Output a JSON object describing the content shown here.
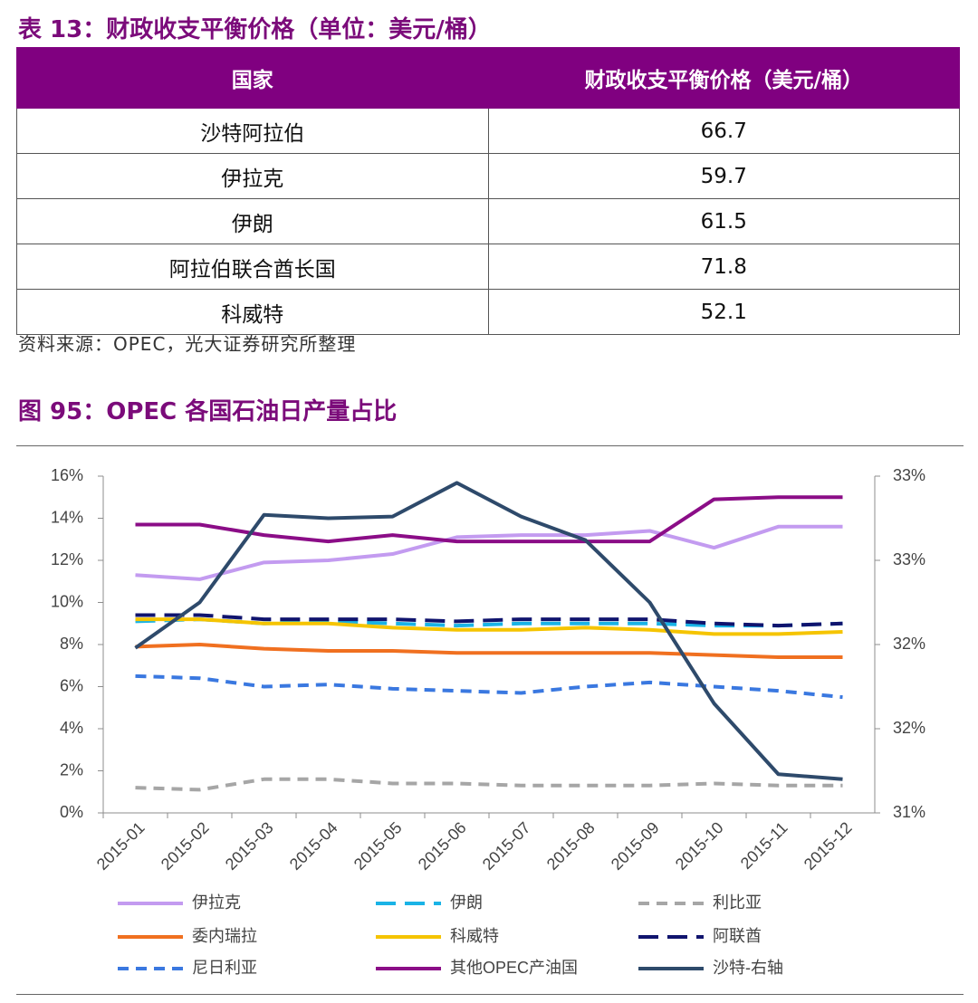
{
  "table_title": "表 13：财政收支平衡价格（单位：美元/桶）",
  "table": {
    "headers": [
      "国家",
      "财政收支平衡价格（美元/桶）"
    ],
    "rows": [
      [
        "沙特阿拉伯",
        66.7
      ],
      [
        "伊拉克",
        59.7
      ],
      [
        "伊朗",
        61.5
      ],
      [
        "阿拉伯联合酋长国",
        71.8
      ],
      [
        "科威特",
        52.1
      ]
    ]
  },
  "table_source": "资料来源：OPEC，光大证券研究所整理",
  "chart_title": "图 95：OPEC 各国石油日产量占比",
  "chart_data": {
    "type": "line",
    "categories": [
      "2015-01",
      "2015-02",
      "2015-03",
      "2015-04",
      "2015-05",
      "2015-06",
      "2015-07",
      "2015-08",
      "2015-09",
      "2015-10",
      "2015-11",
      "2015-12"
    ],
    "ylim": [
      0,
      16
    ],
    "yticks": [
      {
        "value": 0,
        "label": "0%"
      },
      {
        "value": 2,
        "label": "2%"
      },
      {
        "value": 4,
        "label": "4%"
      },
      {
        "value": 6,
        "label": "6%"
      },
      {
        "value": 8,
        "label": "8%"
      },
      {
        "value": 10,
        "label": "10%"
      },
      {
        "value": 12,
        "label": "12%"
      },
      {
        "value": 14,
        "label": "14%"
      },
      {
        "value": 16,
        "label": "16%"
      }
    ],
    "y2lim": [
      31,
      33
    ],
    "y2ticks": [
      {
        "value": 31,
        "label": "31%"
      },
      {
        "value": 31.5,
        "label": "32%"
      },
      {
        "value": 32,
        "label": "32%"
      },
      {
        "value": 32.5,
        "label": "33%"
      },
      {
        "value": 33,
        "label": "33%"
      }
    ],
    "series": [
      {
        "name": "伊拉克",
        "color": "#c39bf0",
        "style": "solid",
        "values": [
          11.3,
          11.1,
          11.9,
          12.0,
          12.3,
          13.1,
          13.2,
          13.2,
          13.4,
          12.6,
          13.6,
          13.6
        ]
      },
      {
        "name": "伊朗",
        "color": "#1ab3e6",
        "style": "long-dash",
        "values": [
          9.1,
          9.2,
          9.0,
          9.1,
          9.0,
          8.9,
          9.0,
          9.0,
          9.0,
          8.9,
          8.9,
          9.0
        ]
      },
      {
        "name": "利比亚",
        "color": "#a6a6a6",
        "style": "dash",
        "values": [
          1.2,
          1.1,
          1.6,
          1.6,
          1.4,
          1.4,
          1.3,
          1.3,
          1.3,
          1.4,
          1.3,
          1.3
        ]
      },
      {
        "name": "委内瑞拉",
        "color": "#f07020",
        "style": "solid",
        "values": [
          7.9,
          8.0,
          7.8,
          7.7,
          7.7,
          7.6,
          7.6,
          7.6,
          7.6,
          7.5,
          7.4,
          7.4
        ]
      },
      {
        "name": "科威特",
        "color": "#f5c400",
        "style": "solid",
        "values": [
          9.2,
          9.2,
          9.0,
          9.0,
          8.8,
          8.7,
          8.7,
          8.8,
          8.7,
          8.5,
          8.5,
          8.6
        ]
      },
      {
        "name": "阿联酋",
        "color": "#10146e",
        "style": "long-dash",
        "values": [
          9.4,
          9.4,
          9.2,
          9.2,
          9.2,
          9.1,
          9.2,
          9.2,
          9.2,
          9.0,
          8.9,
          9.0
        ]
      },
      {
        "name": "尼日利亚",
        "color": "#3a78e0",
        "style": "dash",
        "values": [
          6.5,
          6.4,
          6.0,
          6.1,
          5.9,
          5.8,
          5.7,
          6.0,
          6.2,
          6.0,
          5.8,
          5.5
        ]
      },
      {
        "name": "其他OPEC产油国",
        "color": "#8b0d87",
        "style": "solid",
        "values": [
          13.7,
          13.7,
          13.2,
          12.9,
          13.2,
          12.9,
          12.9,
          12.9,
          12.9,
          14.9,
          15.0,
          15.0
        ]
      },
      {
        "name": "沙特-右轴",
        "color": "#2e4a6b",
        "style": "solid",
        "axis": "y2",
        "values": [
          31.98,
          32.25,
          32.77,
          32.75,
          32.76,
          32.96,
          32.76,
          32.62,
          32.25,
          31.65,
          31.23,
          31.2
        ]
      }
    ]
  }
}
